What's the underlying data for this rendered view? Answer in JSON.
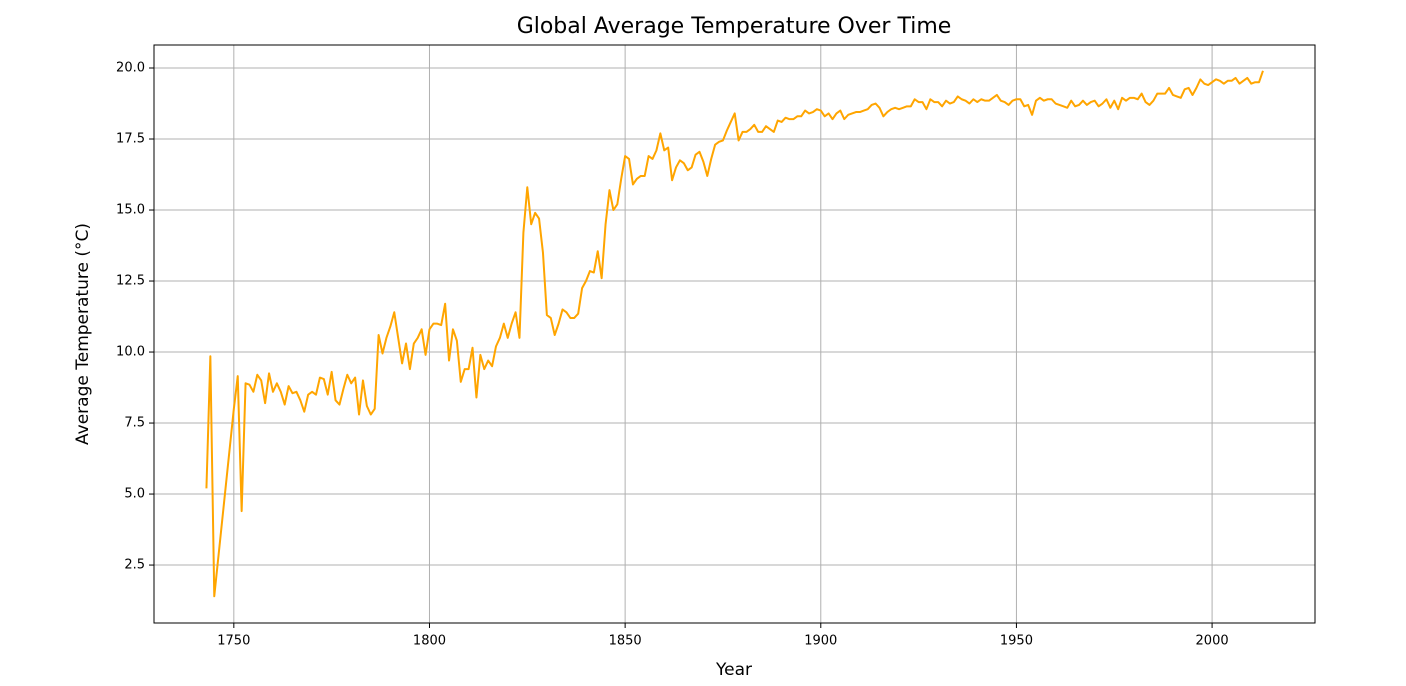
{
  "chart_data": {
    "type": "line",
    "title": "Global Average Temperature Over Time",
    "x_label": "Year",
    "y_label": "Average Temperature (°C)",
    "x": [
      1743,
      1744,
      1745,
      1750,
      1751,
      1752,
      1753,
      1754,
      1755,
      1756,
      1757,
      1758,
      1759,
      1760,
      1761,
      1762,
      1763,
      1764,
      1765,
      1766,
      1767,
      1768,
      1769,
      1770,
      1771,
      1772,
      1773,
      1774,
      1775,
      1776,
      1777,
      1778,
      1779,
      1780,
      1781,
      1782,
      1783,
      1784,
      1785,
      1786,
      1787,
      1788,
      1789,
      1790,
      1791,
      1792,
      1793,
      1794,
      1795,
      1796,
      1797,
      1798,
      1799,
      1800,
      1801,
      1802,
      1803,
      1804,
      1805,
      1806,
      1807,
      1808,
      1809,
      1810,
      1811,
      1812,
      1813,
      1814,
      1815,
      1816,
      1817,
      1818,
      1819,
      1820,
      1821,
      1822,
      1823,
      1824,
      1825,
      1826,
      1827,
      1828,
      1829,
      1830,
      1831,
      1832,
      1833,
      1834,
      1835,
      1836,
      1837,
      1838,
      1839,
      1840,
      1841,
      1842,
      1843,
      1844,
      1845,
      1846,
      1847,
      1848,
      1849,
      1850,
      1851,
      1852,
      1853,
      1854,
      1855,
      1856,
      1857,
      1858,
      1859,
      1860,
      1861,
      1862,
      1863,
      1864,
      1865,
      1866,
      1867,
      1868,
      1869,
      1870,
      1871,
      1872,
      1873,
      1874,
      1875,
      1876,
      1877,
      1878,
      1879,
      1880,
      1881,
      1882,
      1883,
      1884,
      1885,
      1886,
      1887,
      1888,
      1889,
      1890,
      1891,
      1892,
      1893,
      1894,
      1895,
      1896,
      1897,
      1898,
      1899,
      1900,
      1901,
      1902,
      1903,
      1904,
      1905,
      1906,
      1907,
      1908,
      1909,
      1910,
      1911,
      1912,
      1913,
      1914,
      1915,
      1916,
      1917,
      1918,
      1919,
      1920,
      1921,
      1922,
      1923,
      1924,
      1925,
      1926,
      1927,
      1928,
      1929,
      1930,
      1931,
      1932,
      1933,
      1934,
      1935,
      1936,
      1937,
      1938,
      1939,
      1940,
      1941,
      1942,
      1943,
      1944,
      1945,
      1946,
      1947,
      1948,
      1949,
      1950,
      1951,
      1952,
      1953,
      1954,
      1955,
      1956,
      1957,
      1958,
      1959,
      1960,
      1961,
      1962,
      1963,
      1964,
      1965,
      1966,
      1967,
      1968,
      1969,
      1970,
      1971,
      1972,
      1973,
      1974,
      1975,
      1976,
      1977,
      1978,
      1979,
      1980,
      1981,
      1982,
      1983,
      1984,
      1985,
      1986,
      1987,
      1988,
      1989,
      1990,
      1991,
      1992,
      1993,
      1994,
      1995,
      1996,
      1997,
      1998,
      1999,
      2000,
      2001,
      2002,
      2003,
      2004,
      2005,
      2006,
      2007,
      2008,
      2009,
      2010,
      2011,
      2012,
      2013
    ],
    "series": [
      {
        "name": "Average Temperature",
        "color": "#ffa500",
        "values": [
          5.2,
          9.85,
          1.4,
          8.0,
          9.15,
          4.4,
          8.9,
          8.85,
          8.6,
          9.2,
          9.0,
          8.2,
          9.25,
          8.6,
          8.9,
          8.6,
          8.15,
          8.8,
          8.55,
          8.6,
          8.3,
          7.9,
          8.5,
          8.6,
          8.5,
          9.1,
          9.05,
          8.5,
          9.3,
          8.3,
          8.15,
          8.7,
          9.2,
          8.9,
          9.1,
          7.8,
          9.0,
          8.1,
          7.8,
          8.0,
          10.6,
          9.95,
          10.5,
          10.9,
          11.4,
          10.5,
          9.6,
          10.3,
          9.4,
          10.3,
          10.5,
          10.8,
          9.9,
          10.8,
          11.0,
          11.0,
          10.95,
          11.7,
          9.7,
          10.8,
          10.4,
          8.95,
          9.4,
          9.4,
          10.15,
          8.4,
          9.9,
          9.4,
          9.7,
          9.5,
          10.2,
          10.5,
          11.0,
          10.5,
          11.0,
          11.4,
          10.5,
          14.2,
          15.8,
          14.5,
          14.9,
          14.7,
          13.5,
          11.3,
          11.2,
          10.6,
          11.0,
          11.5,
          11.4,
          11.2,
          11.2,
          11.35,
          12.25,
          12.5,
          12.85,
          12.8,
          13.55,
          12.6,
          14.5,
          15.7,
          15.0,
          15.2,
          16.1,
          16.9,
          16.8,
          15.9,
          16.1,
          16.2,
          16.2,
          16.9,
          16.8,
          17.1,
          17.7,
          17.1,
          17.2,
          16.05,
          16.5,
          16.75,
          16.65,
          16.4,
          16.5,
          16.95,
          17.05,
          16.7,
          16.2,
          16.8,
          17.3,
          17.4,
          17.45,
          17.8,
          18.1,
          18.4,
          17.45,
          17.75,
          17.75,
          17.85,
          18.0,
          17.75,
          17.75,
          17.95,
          17.85,
          17.75,
          18.15,
          18.1,
          18.25,
          18.2,
          18.2,
          18.3,
          18.3,
          18.5,
          18.4,
          18.45,
          18.55,
          18.5,
          18.3,
          18.4,
          18.2,
          18.4,
          18.5,
          18.2,
          18.35,
          18.4,
          18.45,
          18.45,
          18.5,
          18.55,
          18.7,
          18.75,
          18.6,
          18.3,
          18.45,
          18.55,
          18.6,
          18.55,
          18.6,
          18.65,
          18.65,
          18.9,
          18.8,
          18.8,
          18.55,
          18.9,
          18.8,
          18.8,
          18.65,
          18.85,
          18.75,
          18.8,
          19.0,
          18.9,
          18.85,
          18.75,
          18.9,
          18.8,
          18.9,
          18.85,
          18.85,
          18.95,
          19.05,
          18.85,
          18.8,
          18.7,
          18.85,
          18.9,
          18.9,
          18.65,
          18.7,
          18.35,
          18.85,
          18.95,
          18.85,
          18.9,
          18.9,
          18.75,
          18.7,
          18.65,
          18.6,
          18.85,
          18.65,
          18.7,
          18.85,
          18.7,
          18.8,
          18.85,
          18.65,
          18.75,
          18.9,
          18.6,
          18.85,
          18.55,
          18.95,
          18.85,
          18.95,
          18.95,
          18.9,
          19.1,
          18.8,
          18.7,
          18.85,
          19.1,
          19.1,
          19.1,
          19.3,
          19.05,
          19.0,
          18.95,
          19.25,
          19.3,
          19.05,
          19.3,
          19.6,
          19.45,
          19.4,
          19.5,
          19.6,
          19.55,
          19.45,
          19.55,
          19.55,
          19.65,
          19.45,
          19.55,
          19.65,
          19.45,
          19.5,
          19.5,
          19.9
        ]
      }
    ],
    "xlim": [
      1729.6,
      2026.3
    ],
    "ylim": [
      0.46,
      20.81
    ],
    "xticks": [
      1750,
      1800,
      1850,
      1900,
      1950,
      2000
    ],
    "yticks": [
      {
        "value": 2.5,
        "label": "2.5"
      },
      {
        "value": 5,
        "label": "5.0"
      },
      {
        "value": 7.5,
        "label": "7.5"
      },
      {
        "value": 10,
        "label": "10.0"
      },
      {
        "value": 12.5,
        "label": "12.5"
      },
      {
        "value": 15,
        "label": "15.0"
      },
      {
        "value": 17.5,
        "label": "17.5"
      },
      {
        "value": 20,
        "label": "20.0"
      }
    ],
    "grid": true
  }
}
